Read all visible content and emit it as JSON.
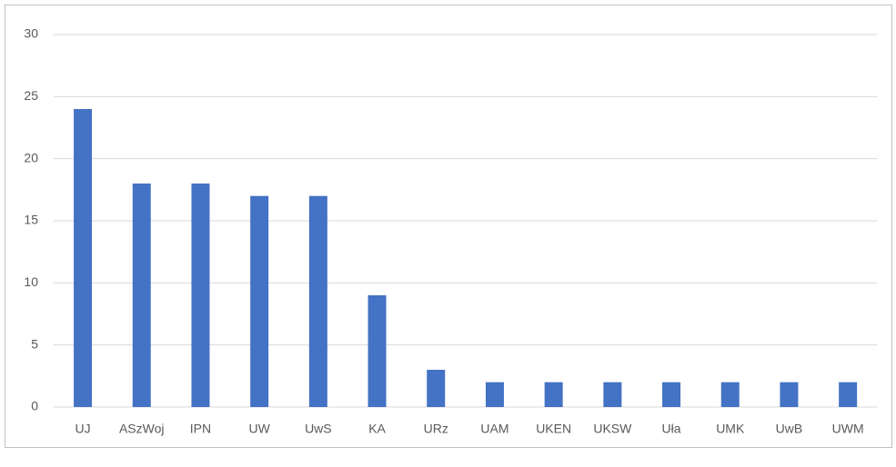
{
  "chart_data": {
    "type": "bar",
    "categories": [
      "UJ",
      "ASzWoj",
      "IPN",
      "UW",
      "UwS",
      "KA",
      "URz",
      "UAM",
      "UKEN",
      "UKSW",
      "Uła",
      "UMK",
      "UwB",
      "UWM"
    ],
    "values": [
      24,
      18,
      18,
      17,
      17,
      9,
      3,
      2,
      2,
      2,
      2,
      2,
      2,
      2
    ],
    "color": "#4472c4",
    "ylim": [
      0,
      30
    ],
    "yticks": [
      0,
      5,
      10,
      15,
      20,
      25,
      30
    ],
    "grid": true
  }
}
